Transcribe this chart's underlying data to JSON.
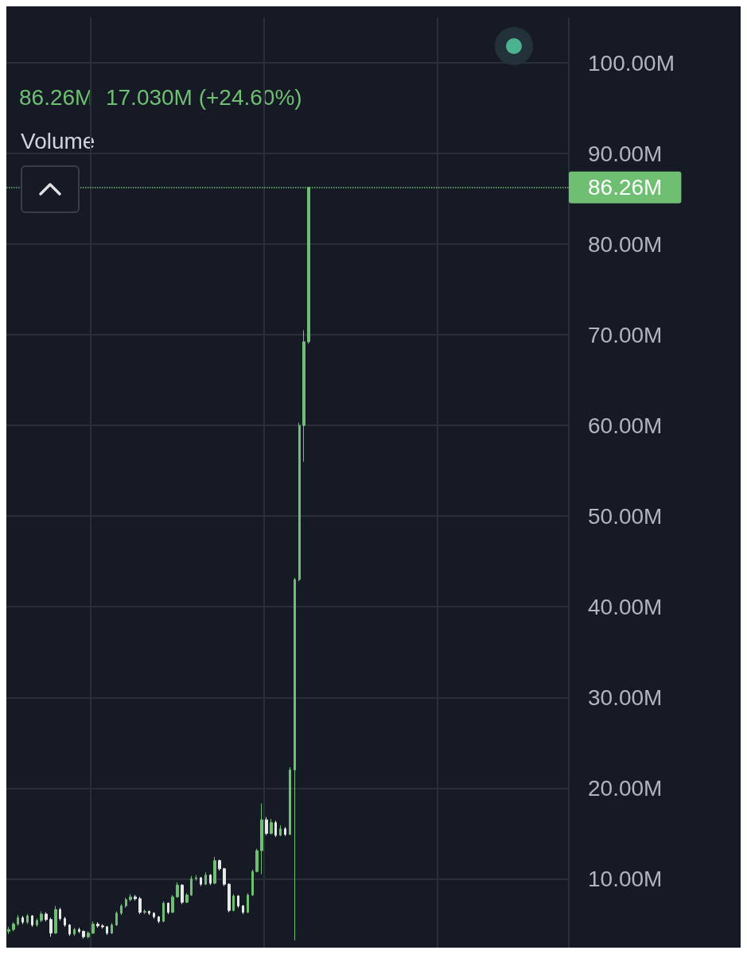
{
  "chart_data": {
    "type": "candlestick",
    "subtitle": "86.26M  17.030M (+24.60%)",
    "annotations": [
      "Volume"
    ],
    "categories": [
      null,
      null,
      null,
      null,
      null,
      null,
      null,
      null,
      null,
      null,
      null,
      null,
      null,
      null,
      null,
      null,
      null,
      null,
      null,
      null,
      null,
      null,
      null,
      null,
      null,
      null,
      null,
      null,
      null,
      null,
      null,
      null,
      null,
      null,
      null,
      null,
      null,
      null,
      null,
      null,
      null,
      null,
      null,
      null,
      null,
      null,
      null,
      null,
      null,
      null,
      null,
      null,
      null,
      null,
      null,
      null,
      null,
      null,
      null,
      null,
      null,
      null,
      null,
      null,
      null,
      null,
      null,
      null,
      null,
      null,
      null,
      null,
      null,
      null,
      null,
      null,
      null,
      null,
      null,
      null,
      null,
      null,
      null,
      null,
      null,
      null,
      null,
      null,
      null,
      null,
      null,
      null,
      null,
      null,
      null,
      null,
      null,
      null,
      null,
      null,
      null,
      null,
      null,
      null,
      null,
      null,
      null,
      null,
      null,
      null,
      null,
      null,
      null,
      null,
      null,
      null,
      null,
      null,
      null,
      null
    ],
    "ohlc": [
      [
        4.2,
        4.7,
        3.9,
        4.4
      ],
      [
        4.4,
        5.2,
        4.2,
        5.0
      ],
      [
        5.0,
        6.0,
        4.8,
        5.7
      ],
      [
        5.7,
        5.9,
        5.0,
        5.2
      ],
      [
        5.2,
        6.1,
        5.0,
        5.9
      ],
      [
        5.9,
        6.0,
        4.7,
        4.9
      ],
      [
        4.9,
        5.6,
        4.7,
        5.4
      ],
      [
        5.4,
        6.4,
        5.2,
        6.1
      ],
      [
        6.1,
        6.3,
        5.3,
        5.5
      ],
      [
        5.5,
        5.7,
        3.6,
        4.0
      ],
      [
        4.0,
        7.0,
        3.9,
        6.6
      ],
      [
        6.6,
        6.8,
        5.4,
        5.6
      ],
      [
        5.6,
        5.8,
        4.7,
        4.9
      ],
      [
        4.9,
        5.0,
        3.7,
        3.9
      ],
      [
        3.9,
        4.6,
        3.7,
        4.4
      ],
      [
        4.4,
        4.6,
        4.0,
        4.2
      ],
      [
        4.2,
        4.3,
        3.4,
        3.6
      ],
      [
        3.6,
        4.2,
        3.4,
        4.0
      ],
      [
        4.0,
        5.3,
        3.9,
        5.0
      ],
      [
        5.0,
        5.2,
        4.6,
        4.8
      ],
      [
        4.8,
        5.0,
        4.5,
        4.7
      ],
      [
        4.7,
        4.8,
        3.8,
        4.0
      ],
      [
        4.0,
        5.1,
        3.9,
        4.9
      ],
      [
        4.9,
        6.4,
        4.8,
        6.2
      ],
      [
        6.2,
        7.2,
        6.0,
        7.0
      ],
      [
        7.0,
        7.9,
        6.8,
        7.7
      ],
      [
        7.7,
        8.3,
        7.5,
        8.0
      ],
      [
        8.0,
        8.2,
        7.6,
        7.8
      ],
      [
        7.8,
        8.0,
        6.1,
        6.3
      ],
      [
        6.3,
        6.6,
        6.1,
        6.4
      ],
      [
        6.4,
        6.5,
        6.0,
        6.2
      ],
      [
        6.2,
        6.3,
        5.6,
        5.8
      ],
      [
        5.8,
        5.9,
        5.1,
        5.3
      ],
      [
        5.3,
        7.5,
        5.2,
        7.3
      ],
      [
        7.3,
        7.4,
        6.1,
        6.3
      ],
      [
        6.3,
        8.2,
        6.2,
        8.0
      ],
      [
        8.0,
        9.6,
        7.9,
        9.3
      ],
      [
        9.3,
        9.4,
        7.2,
        7.4
      ],
      [
        7.4,
        8.4,
        7.3,
        8.2
      ],
      [
        8.2,
        10.3,
        8.1,
        10.0
      ],
      [
        10.0,
        10.4,
        9.8,
        10.1
      ],
      [
        10.1,
        10.2,
        9.2,
        9.4
      ],
      [
        9.4,
        10.7,
        9.3,
        10.4
      ],
      [
        10.4,
        10.5,
        9.3,
        9.5
      ],
      [
        9.5,
        12.4,
        9.4,
        12.0
      ],
      [
        12.0,
        12.1,
        10.9,
        11.1
      ],
      [
        11.1,
        11.2,
        9.2,
        9.4
      ],
      [
        9.4,
        9.5,
        6.3,
        6.5
      ],
      [
        6.5,
        8.3,
        6.4,
        8.1
      ],
      [
        8.1,
        8.2,
        6.8,
        7.0
      ],
      [
        7.0,
        7.1,
        6.1,
        6.3
      ],
      [
        6.3,
        8.4,
        6.2,
        8.2
      ],
      [
        8.2,
        11.0,
        8.1,
        10.8
      ],
      [
        10.8,
        13.3,
        10.7,
        13.1
      ],
      [
        13.1,
        18.3,
        10.5,
        16.5
      ],
      [
        16.5,
        16.8,
        14.8,
        15.0
      ],
      [
        15.0,
        16.6,
        14.9,
        16.2
      ],
      [
        16.2,
        16.4,
        14.6,
        14.8
      ],
      [
        14.8,
        15.9,
        14.7,
        15.5
      ],
      [
        15.5,
        15.7,
        14.7,
        14.9
      ],
      [
        14.9,
        22.3,
        14.8,
        22.0
      ],
      [
        22.0,
        43.2,
        3.2,
        43.0
      ],
      [
        43.0,
        60.3,
        42.8,
        60.0
      ],
      [
        60.0,
        70.5,
        56.0,
        69.23
      ],
      [
        69.23,
        86.26,
        69.0,
        86.26
      ],
      null,
      null,
      null,
      null,
      null,
      null,
      null,
      null,
      null,
      null,
      null,
      null,
      null,
      null,
      null,
      null,
      null,
      null,
      null,
      null,
      null,
      null,
      null,
      null,
      null,
      null,
      null,
      null,
      null,
      null,
      null,
      null,
      null,
      null,
      null,
      null,
      null,
      null,
      null,
      null,
      null,
      null,
      null,
      null,
      null,
      null,
      null,
      null,
      null,
      null,
      null,
      null,
      null,
      null,
      null
    ],
    "colors": [
      "#6fbf73",
      "#6fbf73",
      "#6fbf73",
      "#e8e8e8",
      "#6fbf73",
      "#e8e8e8",
      "#6fbf73",
      "#6fbf73",
      "#e8e8e8",
      "#e8e8e8",
      "#6fbf73",
      "#e8e8e8",
      "#e8e8e8",
      "#e8e8e8",
      "#6fbf73",
      "#e8e8e8",
      "#e8e8e8",
      "#6fbf73",
      "#6fbf73",
      "#e8e8e8",
      "#e8e8e8",
      "#e8e8e8",
      "#6fbf73",
      "#6fbf73",
      "#6fbf73",
      "#6fbf73",
      "#6fbf73",
      "#e8e8e8",
      "#e8e8e8",
      "#6fbf73",
      "#e8e8e8",
      "#e8e8e8",
      "#e8e8e8",
      "#6fbf73",
      "#e8e8e8",
      "#6fbf73",
      "#6fbf73",
      "#e8e8e8",
      "#6fbf73",
      "#6fbf73",
      "#6fbf73",
      "#e8e8e8",
      "#6fbf73",
      "#e8e8e8",
      "#6fbf73",
      "#e8e8e8",
      "#e8e8e8",
      "#e8e8e8",
      "#6fbf73",
      "#e8e8e8",
      "#e8e8e8",
      "#6fbf73",
      "#6fbf73",
      "#6fbf73",
      "#6fbf73",
      "#e8e8e8",
      "#6fbf73",
      "#e8e8e8",
      "#6fbf73",
      "#e8e8e8",
      "#6fbf73",
      "#6fbf73",
      "#6fbf73",
      "#6fbf73",
      "#6fbf73",
      null,
      null,
      null,
      null,
      null,
      null,
      null,
      null,
      null,
      null,
      null,
      null,
      null,
      null,
      null,
      null,
      null,
      null,
      null,
      null,
      null,
      null,
      null,
      null,
      null,
      null,
      null,
      null,
      null,
      null,
      null,
      null,
      null,
      null,
      null,
      null,
      null,
      null,
      null,
      null,
      null,
      null,
      null,
      null,
      null,
      null,
      null,
      null,
      null,
      null,
      null,
      null,
      null,
      null,
      null
    ],
    "ylim": [
      2.4,
      105
    ],
    "yticks": [
      {
        "value": 10,
        "label": "10.00M"
      },
      {
        "value": 20,
        "label": "20.00M"
      },
      {
        "value": 30,
        "label": "30.00M"
      },
      {
        "value": 40,
        "label": "40.00M"
      },
      {
        "value": 50,
        "label": "50.00M"
      },
      {
        "value": 60,
        "label": "60.00M"
      },
      {
        "value": 70,
        "label": "70.00M"
      },
      {
        "value": 80,
        "label": "80.00M"
      },
      {
        "value": 90,
        "label": "90.00M"
      },
      {
        "value": 100,
        "label": "100.00M"
      }
    ],
    "tick_labels": "y",
    "grid": true,
    "ref_lines": [
      {
        "axis": "y",
        "value": 86.26,
        "label": "86.26M",
        "color": "#6fbf73",
        "line_style": "dotted"
      }
    ]
  }
}
